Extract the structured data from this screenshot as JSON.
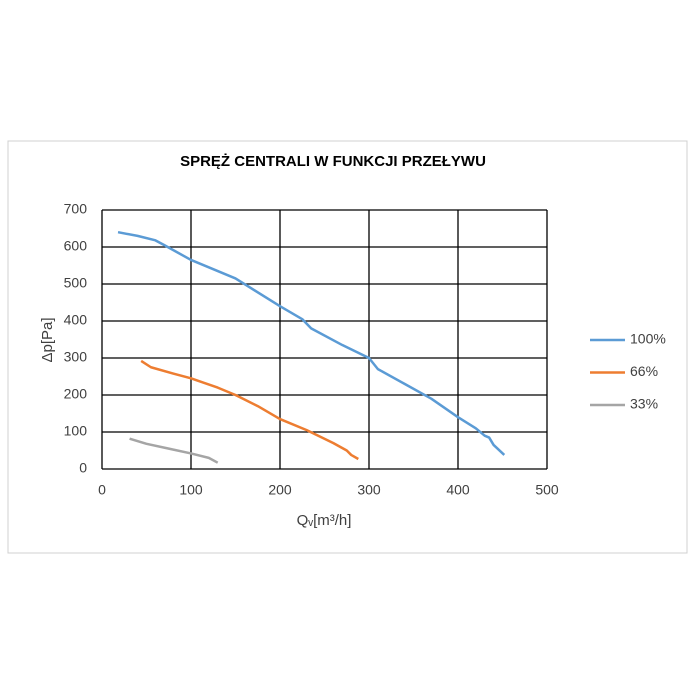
{
  "chart_data": {
    "type": "line",
    "title": "SPRĘŻ CENTRALI W FUNKCJI PRZEŁYWU",
    "x_label": "Qᵥ[m³/h]",
    "y_label": "Δp[Pa]",
    "xlim": [
      0,
      500
    ],
    "xticks": [
      0,
      100,
      200,
      300,
      400,
      500
    ],
    "ylim": [
      0,
      700
    ],
    "yticks": [
      0,
      100,
      200,
      300,
      400,
      500,
      600,
      700
    ],
    "grid": true,
    "legend": "right",
    "series": [
      {
        "name": "100%",
        "color": "#5b9bd5",
        "x": [
          18,
          40,
          60,
          70,
          100,
          150,
          200,
          225,
          235,
          270,
          300,
          310,
          340,
          370,
          400,
          420,
          430,
          435,
          440,
          452
        ],
        "values": [
          640,
          630,
          618,
          605,
          565,
          515,
          440,
          405,
          380,
          335,
          300,
          270,
          230,
          190,
          140,
          110,
          90,
          85,
          65,
          38
        ]
      },
      {
        "name": "66%",
        "color": "#ed7d31",
        "x": [
          44,
          55,
          80,
          100,
          130,
          150,
          175,
          200,
          230,
          260,
          275,
          280,
          288
        ],
        "values": [
          292,
          275,
          258,
          245,
          220,
          200,
          170,
          135,
          105,
          70,
          50,
          38,
          27
        ]
      },
      {
        "name": "33%",
        "color": "#a5a5a5",
        "x": [
          31,
          50,
          75,
          100,
          120,
          130
        ],
        "values": [
          82,
          68,
          55,
          42,
          30,
          17
        ]
      }
    ]
  }
}
